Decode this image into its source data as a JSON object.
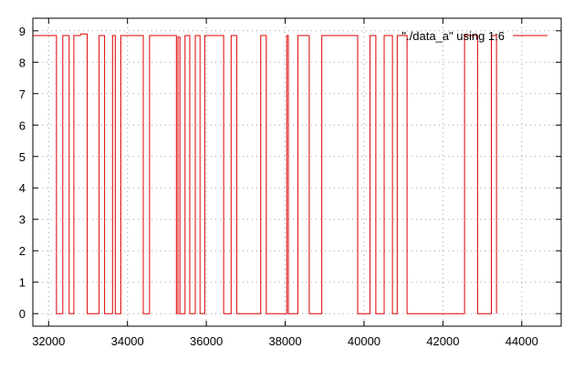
{
  "chart_data": {
    "type": "line",
    "title": "",
    "xlabel": "",
    "ylabel": "",
    "xlim": [
      31600,
      45000
    ],
    "ylim": [
      -0.4,
      9.4
    ],
    "x_ticks": [
      32000,
      34000,
      36000,
      38000,
      40000,
      42000,
      44000
    ],
    "y_ticks": [
      0,
      1,
      2,
      3,
      4,
      5,
      6,
      7,
      8,
      9
    ],
    "x_tick_labels": [
      "32000",
      "34000",
      "36000",
      "38000",
      "40000",
      "42000",
      "44000"
    ],
    "y_tick_labels": [
      "0",
      "1",
      "2",
      "3",
      "4",
      "5",
      "6",
      "7",
      "8",
      "9"
    ],
    "grid": true,
    "legend_position": "top-right",
    "line_color": "#e00000",
    "series": [
      {
        "name": "\"./data_a\" using 1:6",
        "x": [
          31600,
          32200,
          32200,
          32360,
          32360,
          32520,
          32520,
          32640,
          32640,
          32800,
          32820,
          32980,
          32980,
          33280,
          33280,
          33420,
          33420,
          33620,
          33620,
          33690,
          33690,
          33830,
          33830,
          34400,
          34400,
          34560,
          34560,
          35240,
          35240,
          35280,
          35280,
          35330,
          35330,
          35460,
          35460,
          35580,
          35580,
          35720,
          35720,
          35840,
          35840,
          35960,
          35960,
          36440,
          36440,
          36630,
          36630,
          36770,
          36770,
          37380,
          37380,
          37520,
          37520,
          38040,
          38040,
          38080,
          38080,
          38320,
          38320,
          38610,
          38610,
          38930,
          38930,
          39840,
          39840,
          40150,
          40150,
          40300,
          40300,
          40510,
          40510,
          40720,
          40720,
          40840,
          40840,
          41090,
          41090,
          42550,
          42550,
          42880,
          42880,
          43230,
          43230,
          43360,
          43360
        ],
        "y": [
          8.85,
          8.85,
          0,
          0,
          8.85,
          8.85,
          0,
          0,
          8.85,
          8.85,
          8.9,
          8.9,
          0,
          0,
          8.85,
          8.85,
          0,
          0,
          8.85,
          8.85,
          0,
          0,
          8.85,
          8.85,
          0,
          0,
          8.85,
          8.85,
          0,
          0,
          8.8,
          8.8,
          0,
          0,
          8.85,
          8.85,
          0,
          0,
          8.85,
          8.85,
          0,
          0,
          8.85,
          8.85,
          0,
          0,
          8.85,
          8.85,
          0,
          0,
          8.85,
          8.85,
          0,
          0,
          8.85,
          8.85,
          0,
          0,
          8.85,
          8.85,
          0,
          0,
          8.85,
          8.85,
          0,
          0,
          8.85,
          8.85,
          0,
          0,
          8.85,
          8.85,
          0,
          0,
          8.85,
          8.85,
          0,
          0,
          8.85,
          8.85,
          0,
          0,
          8.85,
          8.85,
          0
        ]
      }
    ]
  }
}
